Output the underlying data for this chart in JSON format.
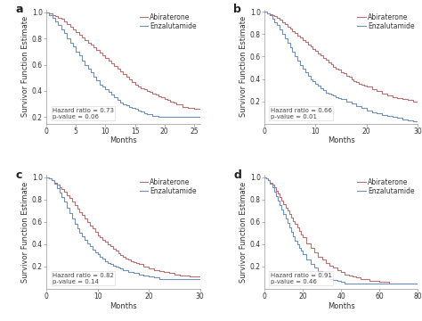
{
  "panels": [
    {
      "label": "a",
      "hazard_ratio": "Hazard ratio = 0.73",
      "p_value": "p-value = 0.06",
      "xlim": [
        0,
        26
      ],
      "xticks": [
        0,
        5,
        10,
        15,
        20,
        25
      ],
      "ylim": [
        0.15,
        1.02
      ],
      "yticks": [
        0.2,
        0.4,
        0.6,
        0.8,
        1.0
      ],
      "abiraterone_x": [
        0,
        0.5,
        1,
        1.5,
        2,
        2.5,
        3,
        3.5,
        4,
        4.5,
        5,
        5.5,
        6,
        6.5,
        7,
        7.5,
        8,
        8.5,
        9,
        9.5,
        10,
        10.5,
        11,
        11.5,
        12,
        12.5,
        13,
        13.5,
        14,
        14.5,
        15,
        15.5,
        16,
        16.5,
        17,
        17.5,
        18,
        18.5,
        19,
        19.5,
        20,
        20.5,
        21,
        21.5,
        22,
        23,
        24,
        25,
        26
      ],
      "abiraterone_y": [
        1.0,
        0.99,
        0.98,
        0.97,
        0.96,
        0.95,
        0.93,
        0.91,
        0.89,
        0.87,
        0.85,
        0.83,
        0.81,
        0.79,
        0.77,
        0.75,
        0.73,
        0.71,
        0.69,
        0.67,
        0.65,
        0.63,
        0.61,
        0.59,
        0.57,
        0.55,
        0.53,
        0.51,
        0.49,
        0.47,
        0.45,
        0.43,
        0.42,
        0.41,
        0.4,
        0.39,
        0.38,
        0.37,
        0.36,
        0.35,
        0.34,
        0.33,
        0.32,
        0.31,
        0.3,
        0.28,
        0.27,
        0.26,
        0.26
      ],
      "enzalutamide_x": [
        0,
        0.5,
        1,
        1.5,
        2,
        2.5,
        3,
        3.5,
        4,
        4.5,
        5,
        5.5,
        6,
        6.5,
        7,
        7.5,
        8,
        8.5,
        9,
        9.5,
        10,
        10.5,
        11,
        11.5,
        12,
        12.5,
        13,
        13.5,
        14,
        14.5,
        15,
        15.5,
        16,
        16.5,
        17,
        18,
        19,
        20,
        21,
        22,
        23,
        24,
        25,
        26
      ],
      "enzalutamide_y": [
        1.0,
        0.98,
        0.96,
        0.93,
        0.9,
        0.87,
        0.84,
        0.8,
        0.77,
        0.74,
        0.7,
        0.67,
        0.63,
        0.6,
        0.57,
        0.54,
        0.51,
        0.48,
        0.45,
        0.43,
        0.41,
        0.39,
        0.37,
        0.35,
        0.33,
        0.31,
        0.3,
        0.29,
        0.28,
        0.27,
        0.26,
        0.25,
        0.24,
        0.23,
        0.22,
        0.21,
        0.2,
        0.2,
        0.2,
        0.2,
        0.2,
        0.2,
        0.2,
        0.2
      ]
    },
    {
      "label": "b",
      "hazard_ratio": "Hazard ratio = 0.66",
      "p_value": "p-value = 0.01",
      "xlim": [
        0,
        30
      ],
      "xticks": [
        0,
        10,
        20,
        30
      ],
      "ylim": [
        0.0,
        1.02
      ],
      "yticks": [
        0.2,
        0.4,
        0.6,
        0.8,
        1.0
      ],
      "abiraterone_x": [
        0,
        0.5,
        1,
        1.5,
        2,
        2.5,
        3,
        3.5,
        4,
        4.5,
        5,
        5.5,
        6,
        6.5,
        7,
        7.5,
        8,
        8.5,
        9,
        9.5,
        10,
        10.5,
        11,
        11.5,
        12,
        12.5,
        13,
        13.5,
        14,
        14.5,
        15,
        15.5,
        16,
        16.5,
        17,
        17.5,
        18,
        18.5,
        19,
        19.5,
        20,
        21,
        22,
        23,
        24,
        25,
        26,
        27,
        28,
        29,
        30
      ],
      "abiraterone_y": [
        1.0,
        0.99,
        0.98,
        0.97,
        0.96,
        0.95,
        0.93,
        0.91,
        0.89,
        0.87,
        0.85,
        0.83,
        0.81,
        0.79,
        0.77,
        0.75,
        0.73,
        0.71,
        0.69,
        0.67,
        0.65,
        0.63,
        0.61,
        0.59,
        0.57,
        0.55,
        0.53,
        0.51,
        0.49,
        0.48,
        0.46,
        0.45,
        0.43,
        0.42,
        0.4,
        0.38,
        0.37,
        0.36,
        0.35,
        0.34,
        0.33,
        0.31,
        0.29,
        0.27,
        0.25,
        0.24,
        0.23,
        0.22,
        0.21,
        0.2,
        0.2
      ],
      "enzalutamide_x": [
        0,
        0.5,
        1,
        1.5,
        2,
        2.5,
        3,
        3.5,
        4,
        4.5,
        5,
        5.5,
        6,
        6.5,
        7,
        7.5,
        8,
        8.5,
        9,
        9.5,
        10,
        10.5,
        11,
        11.5,
        12,
        12.5,
        13,
        13.5,
        14,
        14.5,
        15,
        16,
        17,
        18,
        19,
        20,
        21,
        22,
        23,
        24,
        25,
        26,
        27,
        28,
        29,
        30
      ],
      "enzalutamide_y": [
        1.0,
        0.99,
        0.97,
        0.94,
        0.91,
        0.88,
        0.84,
        0.8,
        0.76,
        0.72,
        0.68,
        0.64,
        0.6,
        0.56,
        0.52,
        0.49,
        0.46,
        0.43,
        0.4,
        0.38,
        0.36,
        0.34,
        0.32,
        0.3,
        0.28,
        0.27,
        0.26,
        0.25,
        0.24,
        0.23,
        0.22,
        0.2,
        0.18,
        0.16,
        0.14,
        0.12,
        0.1,
        0.09,
        0.08,
        0.07,
        0.06,
        0.05,
        0.04,
        0.03,
        0.02,
        0.01
      ]
    },
    {
      "label": "c",
      "hazard_ratio": "Hazard ratio = 0.82",
      "p_value": "p-value = 0.14",
      "xlim": [
        0,
        30
      ],
      "xticks": [
        0,
        10,
        20,
        30
      ],
      "ylim": [
        0.0,
        1.02
      ],
      "yticks": [
        0.2,
        0.4,
        0.6,
        0.8,
        1.0
      ],
      "abiraterone_x": [
        0,
        0.5,
        1,
        1.5,
        2,
        2.5,
        3,
        3.5,
        4,
        4.5,
        5,
        5.5,
        6,
        6.5,
        7,
        7.5,
        8,
        8.5,
        9,
        9.5,
        10,
        10.5,
        11,
        11.5,
        12,
        12.5,
        13,
        13.5,
        14,
        14.5,
        15,
        15.5,
        16,
        16.5,
        17,
        17.5,
        18,
        19,
        20,
        21,
        22,
        23,
        24,
        25,
        26,
        27,
        28,
        29,
        30
      ],
      "abiraterone_y": [
        1.0,
        0.99,
        0.97,
        0.95,
        0.93,
        0.91,
        0.89,
        0.87,
        0.84,
        0.81,
        0.78,
        0.75,
        0.72,
        0.69,
        0.66,
        0.63,
        0.6,
        0.57,
        0.54,
        0.51,
        0.48,
        0.46,
        0.44,
        0.42,
        0.4,
        0.38,
        0.36,
        0.34,
        0.32,
        0.3,
        0.29,
        0.27,
        0.26,
        0.25,
        0.24,
        0.23,
        0.22,
        0.2,
        0.18,
        0.17,
        0.16,
        0.15,
        0.14,
        0.13,
        0.12,
        0.12,
        0.11,
        0.11,
        0.11
      ],
      "enzalutamide_x": [
        0,
        0.5,
        1,
        1.5,
        2,
        2.5,
        3,
        3.5,
        4,
        4.5,
        5,
        5.5,
        6,
        6.5,
        7,
        7.5,
        8,
        8.5,
        9,
        9.5,
        10,
        10.5,
        11,
        11.5,
        12,
        12.5,
        13,
        13.5,
        14,
        14.5,
        15,
        16,
        17,
        18,
        19,
        20,
        21,
        22,
        23,
        24,
        25,
        26,
        27,
        28,
        29,
        30
      ],
      "enzalutamide_y": [
        1.0,
        0.99,
        0.97,
        0.94,
        0.9,
        0.86,
        0.82,
        0.78,
        0.73,
        0.68,
        0.63,
        0.58,
        0.54,
        0.5,
        0.47,
        0.44,
        0.41,
        0.38,
        0.35,
        0.33,
        0.31,
        0.29,
        0.27,
        0.25,
        0.23,
        0.22,
        0.21,
        0.2,
        0.19,
        0.18,
        0.17,
        0.15,
        0.14,
        0.13,
        0.12,
        0.11,
        0.1,
        0.09,
        0.09,
        0.09,
        0.09,
        0.09,
        0.09,
        0.09,
        0.09,
        0.09
      ]
    },
    {
      "label": "d",
      "hazard_ratio": "Hazard ratio = 0.91",
      "p_value": "p-value = 0.46",
      "xlim": [
        0,
        80
      ],
      "xticks": [
        0,
        20,
        40,
        60,
        80
      ],
      "ylim": [
        0.0,
        1.02
      ],
      "yticks": [
        0.2,
        0.4,
        0.6,
        0.8,
        1.0
      ],
      "abiraterone_x": [
        0,
        1,
        2,
        3,
        4,
        5,
        6,
        7,
        8,
        9,
        10,
        11,
        12,
        13,
        14,
        15,
        16,
        17,
        18,
        19,
        20,
        22,
        24,
        26,
        28,
        30,
        32,
        34,
        36,
        38,
        40,
        42,
        44,
        46,
        48,
        50,
        55,
        60,
        65,
        70,
        75,
        80
      ],
      "abiraterone_y": [
        1.0,
        0.99,
        0.97,
        0.95,
        0.93,
        0.91,
        0.88,
        0.85,
        0.82,
        0.79,
        0.76,
        0.73,
        0.7,
        0.67,
        0.64,
        0.61,
        0.58,
        0.55,
        0.52,
        0.49,
        0.46,
        0.41,
        0.37,
        0.33,
        0.29,
        0.26,
        0.23,
        0.21,
        0.19,
        0.17,
        0.15,
        0.13,
        0.12,
        0.11,
        0.1,
        0.09,
        0.07,
        0.06,
        0.05,
        0.05,
        0.05,
        0.05
      ],
      "enzalutamide_x": [
        0,
        1,
        2,
        3,
        4,
        5,
        6,
        7,
        8,
        9,
        10,
        11,
        12,
        13,
        14,
        15,
        16,
        17,
        18,
        19,
        20,
        22,
        24,
        26,
        28,
        30,
        32,
        34,
        36,
        38,
        40,
        42,
        44,
        46,
        48,
        50,
        55,
        60,
        65,
        70,
        75,
        80
      ],
      "enzalutamide_y": [
        1.0,
        0.99,
        0.97,
        0.94,
        0.91,
        0.87,
        0.83,
        0.79,
        0.75,
        0.71,
        0.67,
        0.63,
        0.59,
        0.55,
        0.51,
        0.47,
        0.43,
        0.4,
        0.37,
        0.34,
        0.31,
        0.26,
        0.22,
        0.19,
        0.16,
        0.13,
        0.11,
        0.09,
        0.08,
        0.07,
        0.06,
        0.05,
        0.05,
        0.05,
        0.05,
        0.05,
        0.05,
        0.05,
        0.05,
        0.05,
        0.05,
        0.05
      ]
    }
  ],
  "abiraterone_color": "#b87070",
  "enzalutamide_color": "#7090b8",
  "bg_color": "#ffffff",
  "plot_bg_color": "#ffffff",
  "ylabel": "Survivor Function Estimate",
  "xlabel": "Months",
  "line_width": 0.8,
  "annotation_fontsize": 5.0,
  "legend_fontsize": 5.5,
  "tick_fontsize": 5.5,
  "label_fontsize": 6.0,
  "panel_label_fontsize": 9
}
